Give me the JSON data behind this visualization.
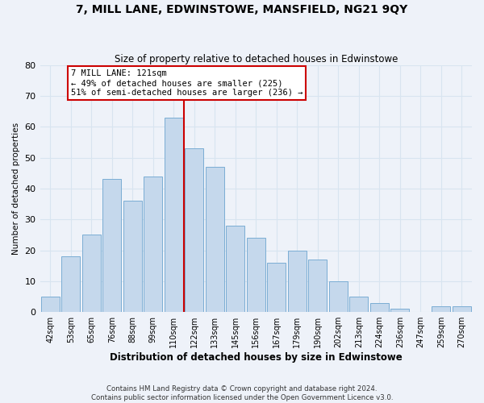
{
  "title": "7, MILL LANE, EDWINSTOWE, MANSFIELD, NG21 9QY",
  "subtitle": "Size of property relative to detached houses in Edwinstowe",
  "xlabel": "Distribution of detached houses by size in Edwinstowe",
  "ylabel": "Number of detached properties",
  "bar_labels": [
    "42sqm",
    "53sqm",
    "65sqm",
    "76sqm",
    "88sqm",
    "99sqm",
    "110sqm",
    "122sqm",
    "133sqm",
    "145sqm",
    "156sqm",
    "167sqm",
    "179sqm",
    "190sqm",
    "202sqm",
    "213sqm",
    "224sqm",
    "236sqm",
    "247sqm",
    "259sqm",
    "270sqm"
  ],
  "bar_values": [
    5,
    18,
    25,
    43,
    36,
    44,
    63,
    53,
    47,
    28,
    24,
    16,
    20,
    17,
    10,
    5,
    3,
    1,
    0,
    2,
    2
  ],
  "bar_color": "#c5d8ec",
  "bar_edge_color": "#7badd4",
  "vline_x_index": 7,
  "vline_color": "#cc0000",
  "annotation_title": "7 MILL LANE: 121sqm",
  "annotation_line1": "← 49% of detached houses are smaller (225)",
  "annotation_line2": "51% of semi-detached houses are larger (236) →",
  "annotation_box_color": "#ffffff",
  "annotation_box_edge": "#cc0000",
  "ylim": [
    0,
    80
  ],
  "yticks": [
    0,
    10,
    20,
    30,
    40,
    50,
    60,
    70,
    80
  ],
  "grid_color": "#d8e4f0",
  "background_color": "#eef2f9",
  "footer1": "Contains HM Land Registry data © Crown copyright and database right 2024.",
  "footer2": "Contains public sector information licensed under the Open Government Licence v3.0."
}
